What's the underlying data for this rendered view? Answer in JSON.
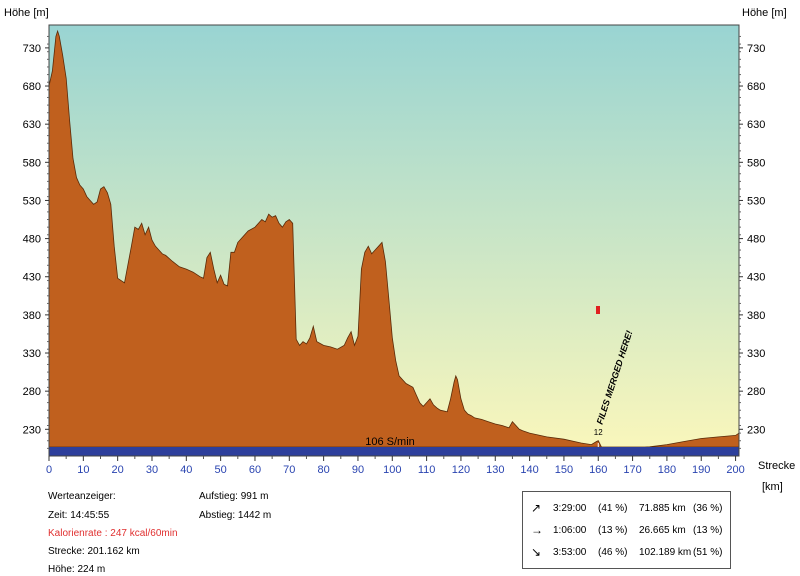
{
  "chart_data": {
    "type": "area",
    "ylabel_left": "Höhe [m]",
    "ylabel_right": "Höhe [m]",
    "xlabel": "Strecke",
    "xlabel_unit": "[km]",
    "yticks": [
      230,
      280,
      330,
      380,
      430,
      480,
      530,
      580,
      630,
      680,
      730
    ],
    "xticks": [
      0,
      10,
      20,
      30,
      40,
      50,
      60,
      70,
      80,
      90,
      100,
      110,
      120,
      130,
      140,
      150,
      160,
      170,
      180,
      190,
      200
    ],
    "xlim": [
      0,
      201
    ],
    "ylim": [
      195,
      760
    ],
    "band_label": "106 S/min",
    "marker_label": "FILES MERGED HERE!",
    "marker_tag": "12",
    "colors": {
      "fill": "#c0601e",
      "band": "#2d3f9c",
      "sky_top": "#99d4d2",
      "sky_bottom": "#fbf7bb"
    },
    "series": [
      {
        "x": [
          0,
          1,
          2,
          2.5,
          3,
          4,
          5,
          6,
          7,
          8,
          9,
          10,
          11,
          12,
          13,
          14,
          15,
          16,
          17,
          18,
          19,
          20,
          22,
          24,
          25,
          26,
          27,
          28,
          29,
          30,
          31,
          32,
          33,
          34,
          36,
          38,
          40,
          42,
          44,
          45,
          46,
          47,
          48,
          49,
          50,
          51,
          52,
          53,
          54,
          55,
          56,
          58,
          60,
          62,
          63,
          64,
          65,
          66,
          67,
          68,
          69,
          70,
          71,
          72,
          73,
          74,
          75,
          76,
          77,
          78,
          80,
          82,
          84,
          86,
          87,
          88,
          89,
          90,
          91,
          92,
          93,
          94,
          95,
          96,
          97,
          98,
          99,
          100,
          101,
          102,
          104,
          106,
          107,
          108,
          109,
          110,
          111,
          112,
          113,
          114,
          116,
          117,
          118,
          118.5,
          119,
          120,
          121,
          122,
          123,
          124,
          126,
          128,
          130,
          132,
          134,
          135,
          136,
          137,
          138,
          140,
          145,
          150,
          155,
          158,
          159.5,
          160,
          161,
          165,
          170,
          175,
          180,
          185,
          190,
          195,
          200,
          201
        ],
        "values": [
          680,
          700,
          745,
          752,
          745,
          720,
          690,
          635,
          585,
          560,
          550,
          545,
          535,
          530,
          525,
          528,
          545,
          548,
          540,
          525,
          470,
          428,
          422,
          470,
          495,
          492,
          500,
          485,
          495,
          478,
          470,
          465,
          460,
          458,
          450,
          443,
          440,
          436,
          430,
          428,
          455,
          462,
          440,
          422,
          432,
          420,
          418,
          462,
          462,
          475,
          480,
          490,
          495,
          505,
          502,
          512,
          508,
          510,
          500,
          495,
          502,
          505,
          500,
          348,
          340,
          345,
          342,
          350,
          365,
          345,
          340,
          338,
          335,
          340,
          350,
          358,
          340,
          352,
          440,
          462,
          470,
          460,
          465,
          470,
          475,
          450,
          400,
          350,
          320,
          300,
          290,
          285,
          275,
          265,
          260,
          265,
          270,
          262,
          258,
          255,
          253,
          270,
          292,
          300,
          295,
          270,
          255,
          250,
          248,
          245,
          243,
          240,
          237,
          235,
          232,
          240,
          235,
          230,
          228,
          225,
          220,
          217,
          212,
          210,
          214,
          215,
          206,
          205,
          206,
          207,
          210,
          214,
          218,
          220,
          222,
          225
        ]
      }
    ]
  },
  "info_panel": {
    "wertanzeiger": "Werteanzeiger:",
    "zeit": "Zeit: 14:45:55",
    "kalorienrate": "Kalorienrate : 247 kcal/60min",
    "strecke": "Strecke: 201.162 km",
    "hoehe": "Höhe: 224 m",
    "aufstieg": "Aufstieg: 991 m",
    "abstieg": "Abstieg: 1442 m"
  },
  "stats": [
    {
      "arrow": "↗",
      "icon": "arrow-up-right-icon",
      "time": "3:29:00",
      "time_pct": "(41 %)",
      "dist": "71.885 km",
      "dist_pct": "(36 %)"
    },
    {
      "arrow": "→",
      "icon": "arrow-right-icon",
      "time": "1:06:00",
      "time_pct": "(13 %)",
      "dist": "26.665 km",
      "dist_pct": "(13 %)"
    },
    {
      "arrow": "↘",
      "icon": "arrow-down-right-icon",
      "time": "3:53:00",
      "time_pct": "(46 %)",
      "dist": "102.189 km",
      "dist_pct": "(51 %)"
    }
  ]
}
